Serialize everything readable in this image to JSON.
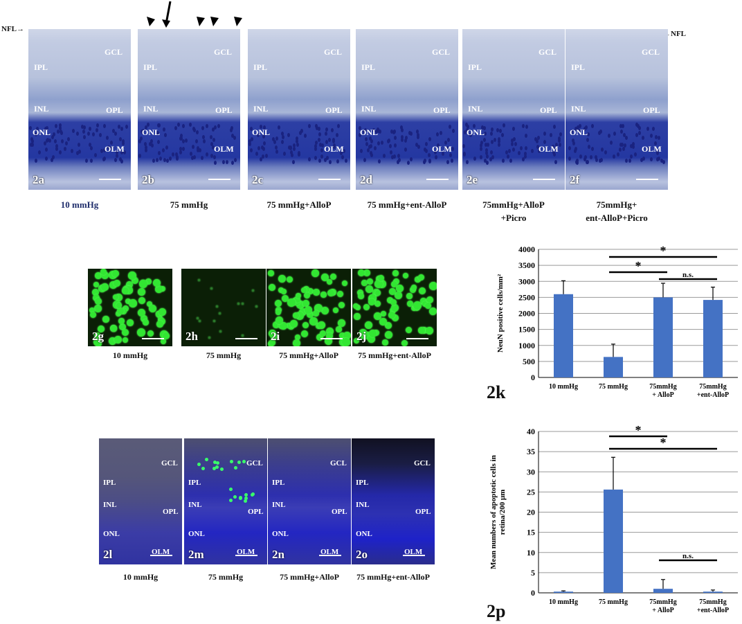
{
  "top_row": {
    "nfl_left": "NFL",
    "nfl_right": "NFL",
    "panels": [
      {
        "id": "2a",
        "caption": "10 mmHg",
        "layers": [
          "GCL",
          "IPL",
          "INL",
          "OPL",
          "ONL",
          "OLM"
        ]
      },
      {
        "id": "2b",
        "caption": "75 mmHg",
        "layers": [
          "GCL",
          "IPL",
          "INL",
          "OPL",
          "ONL",
          "OLM"
        ]
      },
      {
        "id": "2c",
        "caption": "75 mmHg+AlloP",
        "layers": [
          "GCL",
          "IPL",
          "INL",
          "OPL",
          "ONL",
          "OLM"
        ]
      },
      {
        "id": "2d",
        "caption": "75 mmHg+ent-AlloP",
        "layers": [
          "GCL",
          "IPL",
          "INL",
          "OPL",
          "ONL",
          "OLM"
        ]
      },
      {
        "id": "2e",
        "caption_line1": "75mmHg+AlloP",
        "caption_line2": "+Picro",
        "layers": [
          "GCL",
          "IPL",
          "INL",
          "OPL",
          "ONL",
          "OLM"
        ]
      },
      {
        "id": "2f",
        "caption_line1": "75mmHg+",
        "caption_line2": "ent-AlloP+Picro",
        "layers": [
          "GCL",
          "IPL",
          "INL",
          "OPL",
          "ONL",
          "OLM"
        ]
      }
    ]
  },
  "neun_row": {
    "panels": [
      {
        "id": "2g",
        "caption": "10 mmHg"
      },
      {
        "id": "2h",
        "caption": "75 mmHg"
      },
      {
        "id": "2i",
        "caption": "75 mmHg+AlloP"
      },
      {
        "id": "2j",
        "caption": "75 mmHg+ent-AlloP"
      }
    ]
  },
  "tunel_row": {
    "panels": [
      {
        "id": "2l",
        "caption": "10 mmHg",
        "layers": [
          "GCL",
          "IPL",
          "INL",
          "OPL",
          "ONL",
          "OLM"
        ]
      },
      {
        "id": "2m",
        "caption": "75 mmHg",
        "layers": [
          "GCL",
          "IPL",
          "INL",
          "OPL",
          "ONL",
          "OLM"
        ]
      },
      {
        "id": "2n",
        "caption": "75 mmHg+AlloP",
        "layers": [
          "GCL",
          "IPL",
          "INL",
          "OPL",
          "ONL",
          "OLM"
        ]
      },
      {
        "id": "2o",
        "caption": "75 mmHg+ent-AlloP",
        "layers": [
          "GCL",
          "IPL",
          "INL",
          "OPL",
          "ONL",
          "OLM"
        ]
      }
    ]
  },
  "chart_data": [
    {
      "id": "2k",
      "type": "bar",
      "ylabel": "NeuN positive cells/mm²",
      "categories": [
        "10 mmHg",
        "75 mmHg",
        "75mmHg\n+ AlloP",
        "75mmHg\n+ent-AlloP"
      ],
      "values": [
        2600,
        640,
        2500,
        2420
      ],
      "errors": [
        420,
        400,
        440,
        400
      ],
      "ylim": [
        0,
        4000
      ],
      "yticks": [
        0,
        500,
        1000,
        1500,
        2000,
        2500,
        3000,
        3500,
        4000
      ],
      "grid": true,
      "color": "#4472c4",
      "significance": [
        {
          "from": 1,
          "to": 3,
          "label": "*"
        },
        {
          "from": 1,
          "to": 2,
          "label": "*"
        },
        {
          "from": 2,
          "to": 3,
          "label": "n.s."
        }
      ]
    },
    {
      "id": "2p",
      "type": "bar",
      "ylabel": "Mean numbers of apoptotic cells in retina/200 µm",
      "categories": [
        "10 mmHg",
        "75 mmHg",
        "75mmHg\n+ AlloP",
        "75mmHg\n+ent-AlloP"
      ],
      "values": [
        0.3,
        25.6,
        1.0,
        0.3
      ],
      "errors": [
        0.2,
        8.0,
        2.3,
        0.4
      ],
      "ylim": [
        0,
        40
      ],
      "yticks": [
        0,
        5,
        10,
        15,
        20,
        25,
        30,
        35,
        40
      ],
      "grid": true,
      "color": "#4472c4",
      "significance": [
        {
          "from": 1,
          "to": 2,
          "label": "*"
        },
        {
          "from": 1,
          "to": 3,
          "label": "*"
        },
        {
          "from": 2,
          "to": 3,
          "label": "n.s."
        }
      ]
    }
  ]
}
